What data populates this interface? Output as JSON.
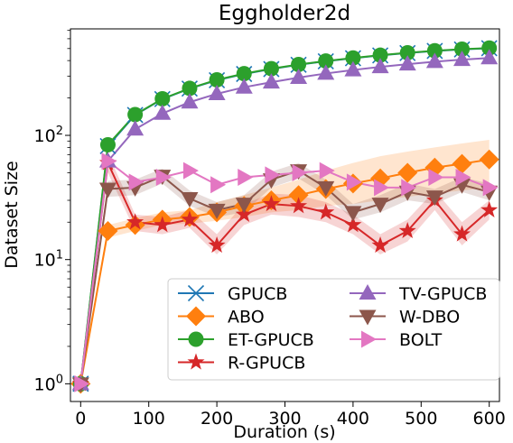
{
  "chart_data": {
    "type": "line",
    "title": "Eggholder2d",
    "xlabel": "Duration (s)",
    "ylabel": "Dataset Size",
    "xlim": [
      -15,
      615
    ],
    "ylim": [
      0.72,
      720
    ],
    "yscale": "log",
    "grid": false,
    "legend_placement": "lower-right",
    "x_ticks": [
      0,
      100,
      200,
      300,
      400,
      500,
      600
    ],
    "x_tick_labels": [
      "0",
      "100",
      "200",
      "300",
      "400",
      "500",
      "600"
    ],
    "y_ticks": [
      1,
      10,
      100
    ],
    "y_tick_labels": [
      {
        "base": "10",
        "exp": "0"
      },
      {
        "base": "10",
        "exp": "1"
      },
      {
        "base": "10",
        "exp": "2"
      }
    ],
    "x": [
      0,
      40,
      80,
      120,
      160,
      200,
      240,
      280,
      320,
      360,
      400,
      440,
      480,
      520,
      560,
      600
    ],
    "series": [
      {
        "name": "GPUCB",
        "color": "#1f77b4",
        "marker": "x",
        "values": [
          1,
          82,
          146,
          196,
          238,
          278,
          312,
          342,
          370,
          395,
          418,
          440,
          460,
          478,
          492,
          503
        ],
        "band": null
      },
      {
        "name": "ABO",
        "color": "#ff7f0e",
        "marker": "diamond",
        "values": [
          1,
          17,
          19,
          21,
          22,
          24,
          27,
          30,
          33,
          37,
          41,
          45,
          50,
          55,
          59,
          64
        ],
        "band": [
          [
            1,
            1
          ],
          [
            15,
            19
          ],
          [
            17,
            21.5
          ],
          [
            19,
            24
          ],
          [
            19.5,
            25
          ],
          [
            20.5,
            29
          ],
          [
            22,
            33
          ],
          [
            24,
            38
          ],
          [
            25,
            44
          ],
          [
            27,
            52
          ],
          [
            28,
            60
          ],
          [
            30,
            68
          ],
          [
            32,
            74
          ],
          [
            34,
            80
          ],
          [
            36,
            86
          ],
          [
            38,
            92
          ]
        ]
      },
      {
        "name": "ET-GPUCB",
        "color": "#2ca02c",
        "marker": "circle",
        "values": [
          1,
          84,
          147,
          197,
          239,
          280,
          314,
          344,
          372,
          397,
          420,
          442,
          462,
          480,
          494,
          505
        ],
        "band": null
      },
      {
        "name": "R-GPUCB",
        "color": "#d62728",
        "marker": "star",
        "values": [
          1,
          60,
          20,
          19,
          21,
          13,
          23,
          28,
          27,
          24,
          19,
          13,
          17,
          30,
          16,
          25
        ],
        "band": [
          [
            1,
            1
          ],
          [
            50,
            72
          ],
          [
            17,
            23
          ],
          [
            16,
            22
          ],
          [
            18,
            25
          ],
          [
            11,
            16
          ],
          [
            19,
            28
          ],
          [
            23,
            34
          ],
          [
            22,
            33
          ],
          [
            20,
            29
          ],
          [
            16,
            23
          ],
          [
            11,
            16
          ],
          [
            14,
            21
          ],
          [
            25,
            36
          ],
          [
            13,
            20
          ],
          [
            21,
            30
          ]
        ]
      },
      {
        "name": "TV-GPUCB",
        "color": "#9467bd",
        "marker": "triangle-up",
        "values": [
          1,
          62,
          112,
          150,
          185,
          216,
          244,
          268,
          292,
          315,
          336,
          356,
          374,
          392,
          407,
          420
        ],
        "band": null
      },
      {
        "name": "W-DBO",
        "color": "#8c564b",
        "marker": "triangle-down",
        "values": [
          1,
          37,
          38,
          47,
          31,
          25,
          28,
          44,
          52,
          38,
          24,
          28,
          35,
          32,
          40,
          35
        ],
        "band": [
          [
            1,
            1
          ],
          [
            32,
            43
          ],
          [
            33,
            44
          ],
          [
            41,
            54
          ],
          [
            27,
            36
          ],
          [
            22,
            29
          ],
          [
            24,
            33
          ],
          [
            38,
            51
          ],
          [
            45,
            60
          ],
          [
            33,
            44
          ],
          [
            21,
            28
          ],
          [
            24,
            33
          ],
          [
            30,
            41
          ],
          [
            28,
            37
          ],
          [
            35,
            46
          ],
          [
            30,
            41
          ]
        ]
      },
      {
        "name": "BOLT",
        "color": "#e377c2",
        "marker": "triangle-right",
        "values": [
          1,
          62,
          42,
          46,
          52,
          40,
          46,
          48,
          50,
          52,
          42,
          38,
          38,
          46,
          46,
          38
        ],
        "band": null
      }
    ]
  }
}
